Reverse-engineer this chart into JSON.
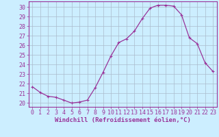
{
  "x": [
    0,
    1,
    2,
    3,
    4,
    5,
    6,
    7,
    8,
    9,
    10,
    11,
    12,
    13,
    14,
    15,
    16,
    17,
    18,
    19,
    20,
    21,
    22,
    23
  ],
  "y": [
    21.7,
    21.1,
    20.7,
    20.6,
    20.3,
    20.0,
    20.1,
    20.3,
    21.6,
    23.2,
    24.9,
    26.3,
    26.7,
    27.5,
    28.8,
    29.9,
    30.2,
    30.2,
    30.1,
    29.2,
    26.8,
    26.2,
    24.2,
    23.3
  ],
  "line_color": "#993399",
  "marker": "+",
  "marker_size": 3,
  "marker_linewidth": 0.8,
  "line_width": 0.9,
  "bg_color": "#cceeff",
  "grid_color": "#aabbcc",
  "xlabel": "Windchill (Refroidissement éolien,°C)",
  "xlabel_color": "#993399",
  "tick_color": "#993399",
  "ylabel_ticks": [
    20,
    21,
    22,
    23,
    24,
    25,
    26,
    27,
    28,
    29,
    30
  ],
  "xlim": [
    -0.5,
    23.5
  ],
  "ylim": [
    19.6,
    30.6
  ],
  "axis_label_fontsize": 6.5,
  "tick_fontsize": 6.0
}
